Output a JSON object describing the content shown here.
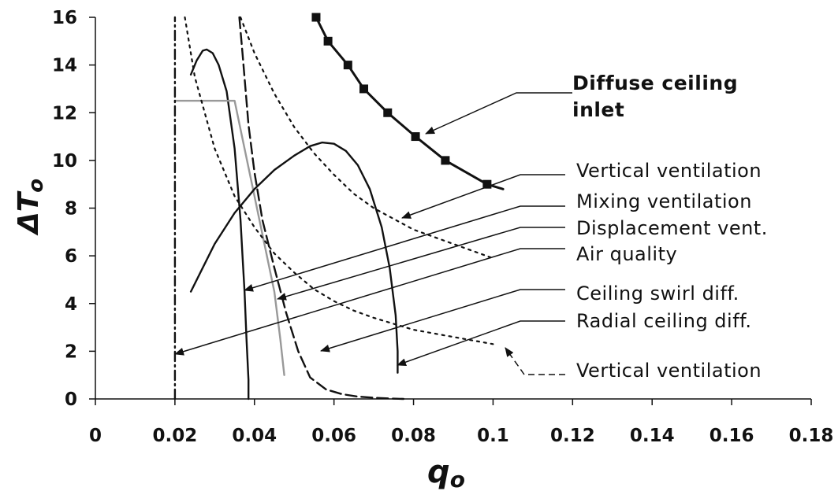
{
  "chart_data": {
    "type": "line",
    "title": "",
    "xlabel": "q",
    "xlabel_sub": "o",
    "ylabel": "ΔT",
    "ylabel_sub": "o",
    "xlim": [
      0,
      0.18
    ],
    "ylim": [
      0,
      16
    ],
    "xticks": [
      "0",
      "0.02",
      "0.04",
      "0.06",
      "0.08",
      "0.1",
      "0.12",
      "0.14",
      "0.16",
      "0.18"
    ],
    "yticks": [
      "0",
      "2",
      "4",
      "6",
      "8",
      "10",
      "12",
      "14",
      "16"
    ],
    "grid": false,
    "annotations": [
      {
        "lines": [
          "Diffuse ceiling",
          "inlet"
        ],
        "bold": true
      },
      {
        "lines": [
          "Vertical ventilation"
        ]
      },
      {
        "lines": [
          "Mixing ventilation"
        ]
      },
      {
        "lines": [
          "Displacement vent."
        ]
      },
      {
        "lines": [
          "Air quality"
        ]
      },
      {
        "lines": [
          "Ceiling swirl diff."
        ]
      },
      {
        "lines": [
          "Radial ceiling diff."
        ]
      },
      {
        "lines": [
          "Vertical ventilation"
        ]
      }
    ],
    "series": [
      {
        "id": "diffuse",
        "style": "solid-marker",
        "color": "#111111",
        "x": [
          0.0555,
          0.0585,
          0.0635,
          0.0675,
          0.0735,
          0.0805,
          0.088,
          0.0985,
          0.1025
        ],
        "y": [
          16,
          15,
          14,
          13,
          12,
          11,
          10,
          9,
          8.8
        ],
        "markers": [
          0,
          1,
          2,
          3,
          4,
          5,
          6,
          7
        ]
      },
      {
        "id": "vertical1",
        "style": "dotted",
        "color": "#111111",
        "x": [
          0.0365,
          0.04,
          0.045,
          0.05,
          0.055,
          0.06,
          0.065,
          0.07,
          0.08,
          0.09,
          0.1
        ],
        "y": [
          16,
          14.5,
          12.8,
          11.4,
          10.3,
          9.4,
          8.6,
          8.0,
          7.1,
          6.5,
          5.9
        ]
      },
      {
        "id": "mixing",
        "style": "solid",
        "color": "#111111",
        "x": [
          0.024,
          0.0255,
          0.027,
          0.028,
          0.0295,
          0.031,
          0.033,
          0.035,
          0.0365,
          0.037,
          0.0375,
          0.038,
          0.0385,
          0.0385
        ],
        "y": [
          13.6,
          14.2,
          14.6,
          14.65,
          14.5,
          14.0,
          12.9,
          10.5,
          7.5,
          6.0,
          4.5,
          2.5,
          0.8,
          0
        ]
      },
      {
        "id": "displacement",
        "style": "solid",
        "color": "#999999",
        "x": [
          0.02,
          0.035,
          0.0375,
          0.04,
          0.0425,
          0.045,
          0.0465,
          0.0475
        ],
        "y": [
          12.5,
          12.5,
          10.5,
          8.5,
          6.5,
          4.5,
          2.5,
          1.0
        ]
      },
      {
        "id": "airquality",
        "style": "dashdot",
        "color": "#111111",
        "x": [
          0.02,
          0.02
        ],
        "y": [
          0,
          16
        ]
      },
      {
        "id": "swirl",
        "style": "dashed",
        "color": "#111111",
        "x": [
          0.0362,
          0.037,
          0.0385,
          0.04,
          0.042,
          0.045,
          0.048,
          0.051,
          0.054,
          0.058,
          0.062,
          0.066,
          0.07,
          0.074,
          0.0775
        ],
        "y": [
          16,
          14.5,
          11.5,
          9.5,
          7.5,
          5.5,
          3.6,
          2.0,
          0.9,
          0.4,
          0.2,
          0.1,
          0.05,
          0.02,
          0
        ]
      },
      {
        "id": "radial",
        "style": "solid",
        "color": "#111111",
        "x": [
          0.024,
          0.03,
          0.035,
          0.04,
          0.045,
          0.05,
          0.054,
          0.057,
          0.06,
          0.063,
          0.066,
          0.069,
          0.072,
          0.074,
          0.0755,
          0.076,
          0.076
        ],
        "y": [
          4.5,
          6.5,
          7.8,
          8.8,
          9.6,
          10.2,
          10.6,
          10.75,
          10.7,
          10.4,
          9.8,
          8.8,
          7.2,
          5.5,
          3.5,
          2.0,
          1.1
        ]
      },
      {
        "id": "vertical2",
        "style": "dotted",
        "color": "#111111",
        "x": [
          0.0225,
          0.025,
          0.03,
          0.035,
          0.04,
          0.045,
          0.05,
          0.055,
          0.06,
          0.065,
          0.07,
          0.08,
          0.09,
          0.1
        ],
        "y": [
          16,
          13.5,
          10.5,
          8.5,
          7.2,
          6.1,
          5.3,
          4.6,
          4.1,
          3.7,
          3.4,
          2.9,
          2.6,
          2.3
        ]
      }
    ]
  }
}
